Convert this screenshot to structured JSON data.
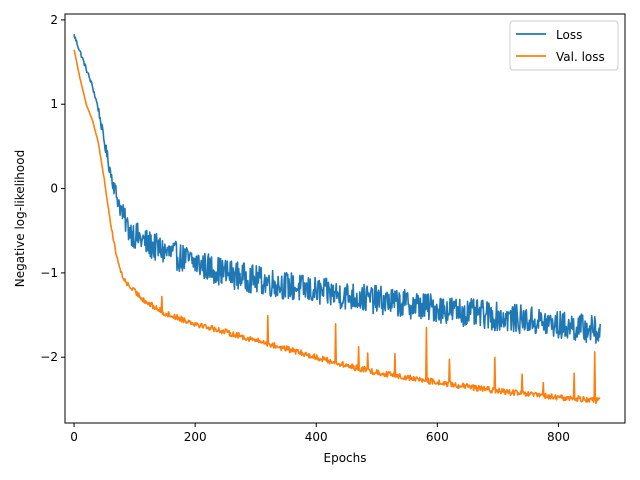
{
  "chart_data": {
    "type": "line",
    "title": "",
    "xlabel": "Epochs",
    "ylabel": "Negative log-likelihood",
    "xlim": [
      -15,
      910
    ],
    "ylim": [
      -2.78,
      2.07
    ],
    "xticks": [
      0,
      200,
      400,
      600,
      800
    ],
    "yticks": [
      -2,
      -1,
      0,
      1,
      2
    ],
    "grid": false,
    "legend_position": "top-right",
    "series": [
      {
        "name": "Loss",
        "color": "#1f77b4",
        "x_start": 0,
        "x_end": 869,
        "noise_amplitude": 0.17,
        "points": [
          [
            0,
            1.82
          ],
          [
            10,
            1.62
          ],
          [
            20,
            1.42
          ],
          [
            30,
            1.22
          ],
          [
            40,
            0.95
          ],
          [
            50,
            0.55
          ],
          [
            60,
            0.2
          ],
          [
            70,
            -0.08
          ],
          [
            80,
            -0.3
          ],
          [
            90,
            -0.48
          ],
          [
            100,
            -0.55
          ],
          [
            120,
            -0.65
          ],
          [
            150,
            -0.75
          ],
          [
            200,
            -0.88
          ],
          [
            250,
            -1.0
          ],
          [
            300,
            -1.08
          ],
          [
            350,
            -1.15
          ],
          [
            400,
            -1.22
          ],
          [
            450,
            -1.27
          ],
          [
            500,
            -1.32
          ],
          [
            550,
            -1.37
          ],
          [
            600,
            -1.42
          ],
          [
            650,
            -1.47
          ],
          [
            700,
            -1.52
          ],
          [
            750,
            -1.56
          ],
          [
            800,
            -1.62
          ],
          [
            850,
            -1.66
          ],
          [
            869,
            -1.7
          ]
        ]
      },
      {
        "name": "Val. loss",
        "color": "#ff7f0e",
        "x_start": 0,
        "x_end": 869,
        "noise_amplitude": 0.035,
        "points": [
          [
            0,
            1.65
          ],
          [
            10,
            1.3
          ],
          [
            20,
            1.0
          ],
          [
            30,
            0.82
          ],
          [
            40,
            0.55
          ],
          [
            50,
            0.1
          ],
          [
            60,
            -0.4
          ],
          [
            70,
            -0.8
          ],
          [
            80,
            -1.05
          ],
          [
            90,
            -1.15
          ],
          [
            100,
            -1.22
          ],
          [
            120,
            -1.35
          ],
          [
            150,
            -1.48
          ],
          [
            200,
            -1.6
          ],
          [
            250,
            -1.7
          ],
          [
            300,
            -1.8
          ],
          [
            350,
            -1.9
          ],
          [
            400,
            -2.0
          ],
          [
            450,
            -2.1
          ],
          [
            500,
            -2.18
          ],
          [
            550,
            -2.24
          ],
          [
            600,
            -2.3
          ],
          [
            650,
            -2.35
          ],
          [
            700,
            -2.4
          ],
          [
            750,
            -2.44
          ],
          [
            800,
            -2.48
          ],
          [
            850,
            -2.5
          ],
          [
            869,
            -2.52
          ]
        ],
        "spikes": [
          [
            145,
            0.15
          ],
          [
            320,
            0.35
          ],
          [
            432,
            0.45
          ],
          [
            470,
            0.25
          ],
          [
            485,
            0.2
          ],
          [
            530,
            0.28
          ],
          [
            582,
            0.65
          ],
          [
            620,
            0.3
          ],
          [
            695,
            0.4
          ],
          [
            740,
            0.22
          ],
          [
            775,
            0.18
          ],
          [
            826,
            0.3
          ],
          [
            860,
            0.55
          ]
        ]
      }
    ]
  }
}
